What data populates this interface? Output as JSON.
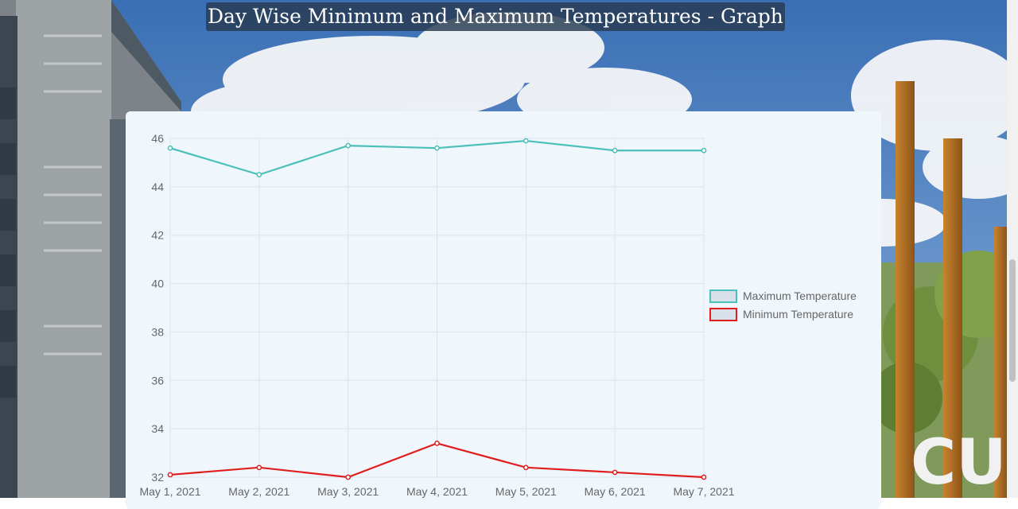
{
  "page": {
    "title": "Day Wise Minimum and Maximum Temperatures - Graph"
  },
  "colors": {
    "max_line": "#4bbfb9",
    "min_line": "#e01e1e",
    "card_bg": "#eff7fd",
    "grid": "#dde3ea"
  },
  "chart_data": {
    "type": "line",
    "title": "",
    "xlabel": "",
    "ylabel": "",
    "categories": [
      "May 1, 2021",
      "May 2, 2021",
      "May 3, 2021",
      "May 4, 2021",
      "May 5, 2021",
      "May 6, 2021",
      "May 7, 2021"
    ],
    "series": [
      {
        "name": "Maximum Temperature",
        "values": [
          45.6,
          44.5,
          45.7,
          45.6,
          45.9,
          45.5,
          45.5
        ]
      },
      {
        "name": "Minimum Temperature",
        "values": [
          32.1,
          32.4,
          32.0,
          33.4,
          32.4,
          32.2,
          32.0
        ]
      }
    ],
    "ylim": [
      32,
      46
    ],
    "yticks": [
      32,
      34,
      36,
      38,
      40,
      42,
      44,
      46
    ],
    "grid": true,
    "legend_position": "right"
  }
}
